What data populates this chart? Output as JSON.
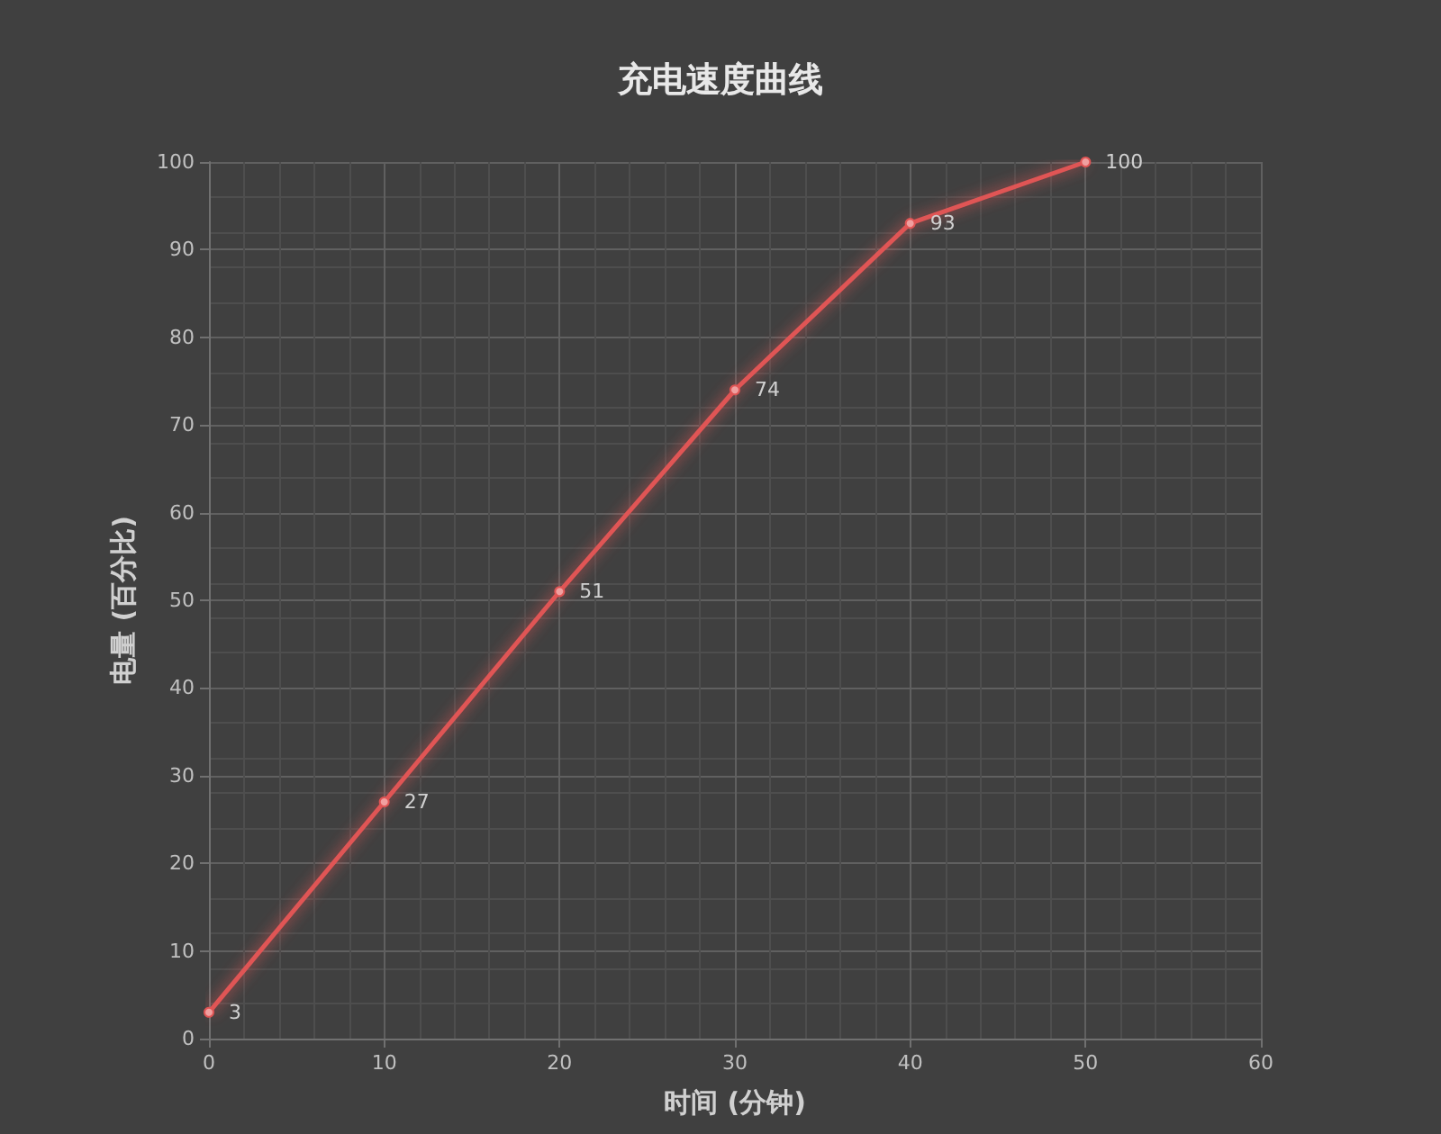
{
  "chart_data": {
    "type": "line",
    "title": "充电速度曲线",
    "xlabel": "时间 (分钟)",
    "ylabel": "电量 (百分比)",
    "x": [
      0,
      10,
      20,
      30,
      40,
      50
    ],
    "series": [
      {
        "color": "#e05555",
        "values": [
          3,
          27,
          51,
          74,
          93,
          100
        ]
      }
    ],
    "xlim": [
      0,
      60
    ],
    "xticks": [
      0,
      10,
      20,
      30,
      40,
      50,
      60
    ],
    "ylim": [
      0,
      100
    ],
    "yticks": [
      0,
      10,
      20,
      30,
      40,
      50,
      60,
      70,
      80,
      90,
      100
    ],
    "grid": true,
    "marker": "circle",
    "line_style": "solid",
    "data_labels": true
  }
}
